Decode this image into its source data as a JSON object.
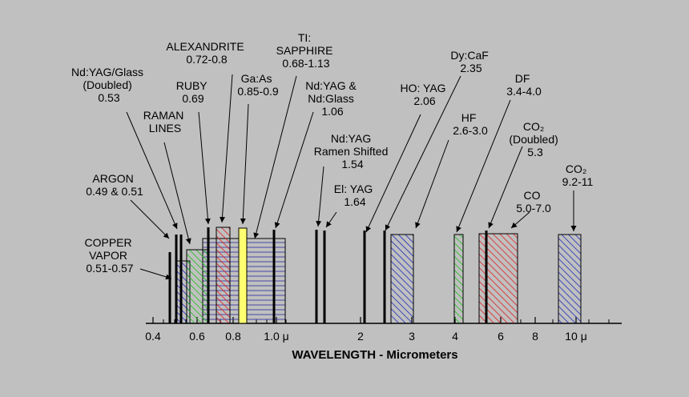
{
  "colors": {
    "background": "#c0c0c0",
    "blue_hatch": "#1c28b8",
    "green_hatch": "#1fc01f",
    "red_hatch": "#e02020",
    "yellow_fill": "#ffff70"
  },
  "axis": {
    "title": "WAVELENGTH - Micrometers",
    "ticks": [
      "0.4",
      "0.6",
      "0.8",
      "1.0 μ",
      "2",
      "3",
      "4",
      "6",
      "8",
      "10 μ"
    ]
  },
  "lasers": [
    {
      "id": "copper-vapor",
      "lines": [
        "COPPER",
        "VAPOR",
        "0.51-0.57"
      ]
    },
    {
      "id": "argon",
      "lines": [
        "ARGON",
        "0.49 & 0.51"
      ]
    },
    {
      "id": "ndyag-glass-doubled",
      "lines": [
        "Nd:YAG/Glass",
        "(Doubled)",
        "0.53"
      ]
    },
    {
      "id": "raman-lines",
      "lines": [
        "RAMAN",
        "LINES"
      ]
    },
    {
      "id": "ruby",
      "lines": [
        "RUBY",
        "0.69"
      ]
    },
    {
      "id": "alexandrite",
      "lines": [
        "ALEXANDRITE",
        "0.72-0.8"
      ]
    },
    {
      "id": "gaas",
      "lines": [
        "Ga:As",
        "0.85-0.9"
      ]
    },
    {
      "id": "ti-sapphire",
      "lines": [
        "TI:",
        "SAPPHIRE",
        "0.68-1.13"
      ]
    },
    {
      "id": "ndyag-ndglass",
      "lines": [
        "Nd:YAG &",
        "Nd:Glass",
        "1.06"
      ]
    },
    {
      "id": "ndyag-raman",
      "lines": [
        "Nd:YAG",
        "Ramen Shifted",
        "1.54"
      ]
    },
    {
      "id": "er-yag",
      "lines": [
        "El: YAG",
        "1.64"
      ]
    },
    {
      "id": "ho-yag",
      "lines": [
        "HO: YAG",
        "2.06"
      ]
    },
    {
      "id": "dy-caf",
      "lines": [
        "Dy:CaF",
        "2.35"
      ]
    },
    {
      "id": "hf",
      "lines": [
        "HF",
        "2.6-3.0"
      ]
    },
    {
      "id": "df",
      "lines": [
        "DF",
        "3.4-4.0"
      ]
    },
    {
      "id": "co2-doubled",
      "lines": [
        "CO₂",
        "(Doubled)",
        "5.3"
      ]
    },
    {
      "id": "co",
      "lines": [
        "CO",
        "5.0-7.0"
      ]
    },
    {
      "id": "co2",
      "lines": [
        "CO₂",
        "9.2-11"
      ]
    }
  ]
}
